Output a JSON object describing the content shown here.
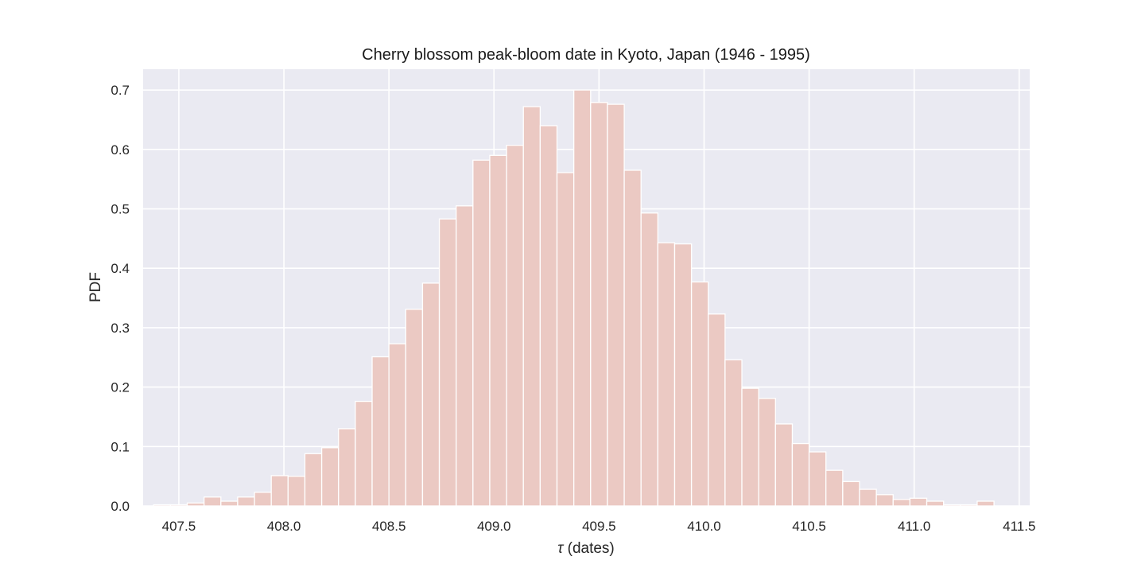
{
  "chart_data": {
    "type": "bar",
    "title": "Cherry blossom peak-bloom date in Kyoto, Japan (1946 - 1995)",
    "xlabel_symbol": "τ",
    "xlabel_text": " (dates)",
    "ylabel": "PDF",
    "xlim": [
      407.33,
      411.55
    ],
    "ylim": [
      0,
      0.735
    ],
    "xticks": [
      407.5,
      408.0,
      408.5,
      409.0,
      409.5,
      410.0,
      410.5,
      411.0,
      411.5
    ],
    "xtick_labels": [
      "407.5",
      "408.0",
      "408.5",
      "409.0",
      "409.5",
      "410.0",
      "410.5",
      "411.0",
      "411.5"
    ],
    "yticks": [
      0.0,
      0.1,
      0.2,
      0.3,
      0.4,
      0.5,
      0.6,
      0.7
    ],
    "ytick_labels": [
      "0.0",
      "0.1",
      "0.2",
      "0.3",
      "0.4",
      "0.5",
      "0.6",
      "0.7"
    ],
    "grid": true,
    "bin_start": 407.38,
    "bin_width": 0.08,
    "values": [
      0.002,
      0.002,
      0.005,
      0.015,
      0.008,
      0.015,
      0.023,
      0.051,
      0.05,
      0.088,
      0.098,
      0.13,
      0.176,
      0.251,
      0.273,
      0.331,
      0.375,
      0.483,
      0.505,
      0.582,
      0.59,
      0.607,
      0.672,
      0.64,
      0.561,
      0.7,
      0.679,
      0.676,
      0.565,
      0.493,
      0.443,
      0.441,
      0.377,
      0.323,
      0.246,
      0.198,
      0.181,
      0.138,
      0.105,
      0.091,
      0.06,
      0.041,
      0.028,
      0.019,
      0.011,
      0.013,
      0.008,
      0.002,
      0.002,
      0.008
    ],
    "colors": {
      "background": "#eaeaf2",
      "bar": "#ebc9c3",
      "grid": "#ffffff"
    }
  }
}
